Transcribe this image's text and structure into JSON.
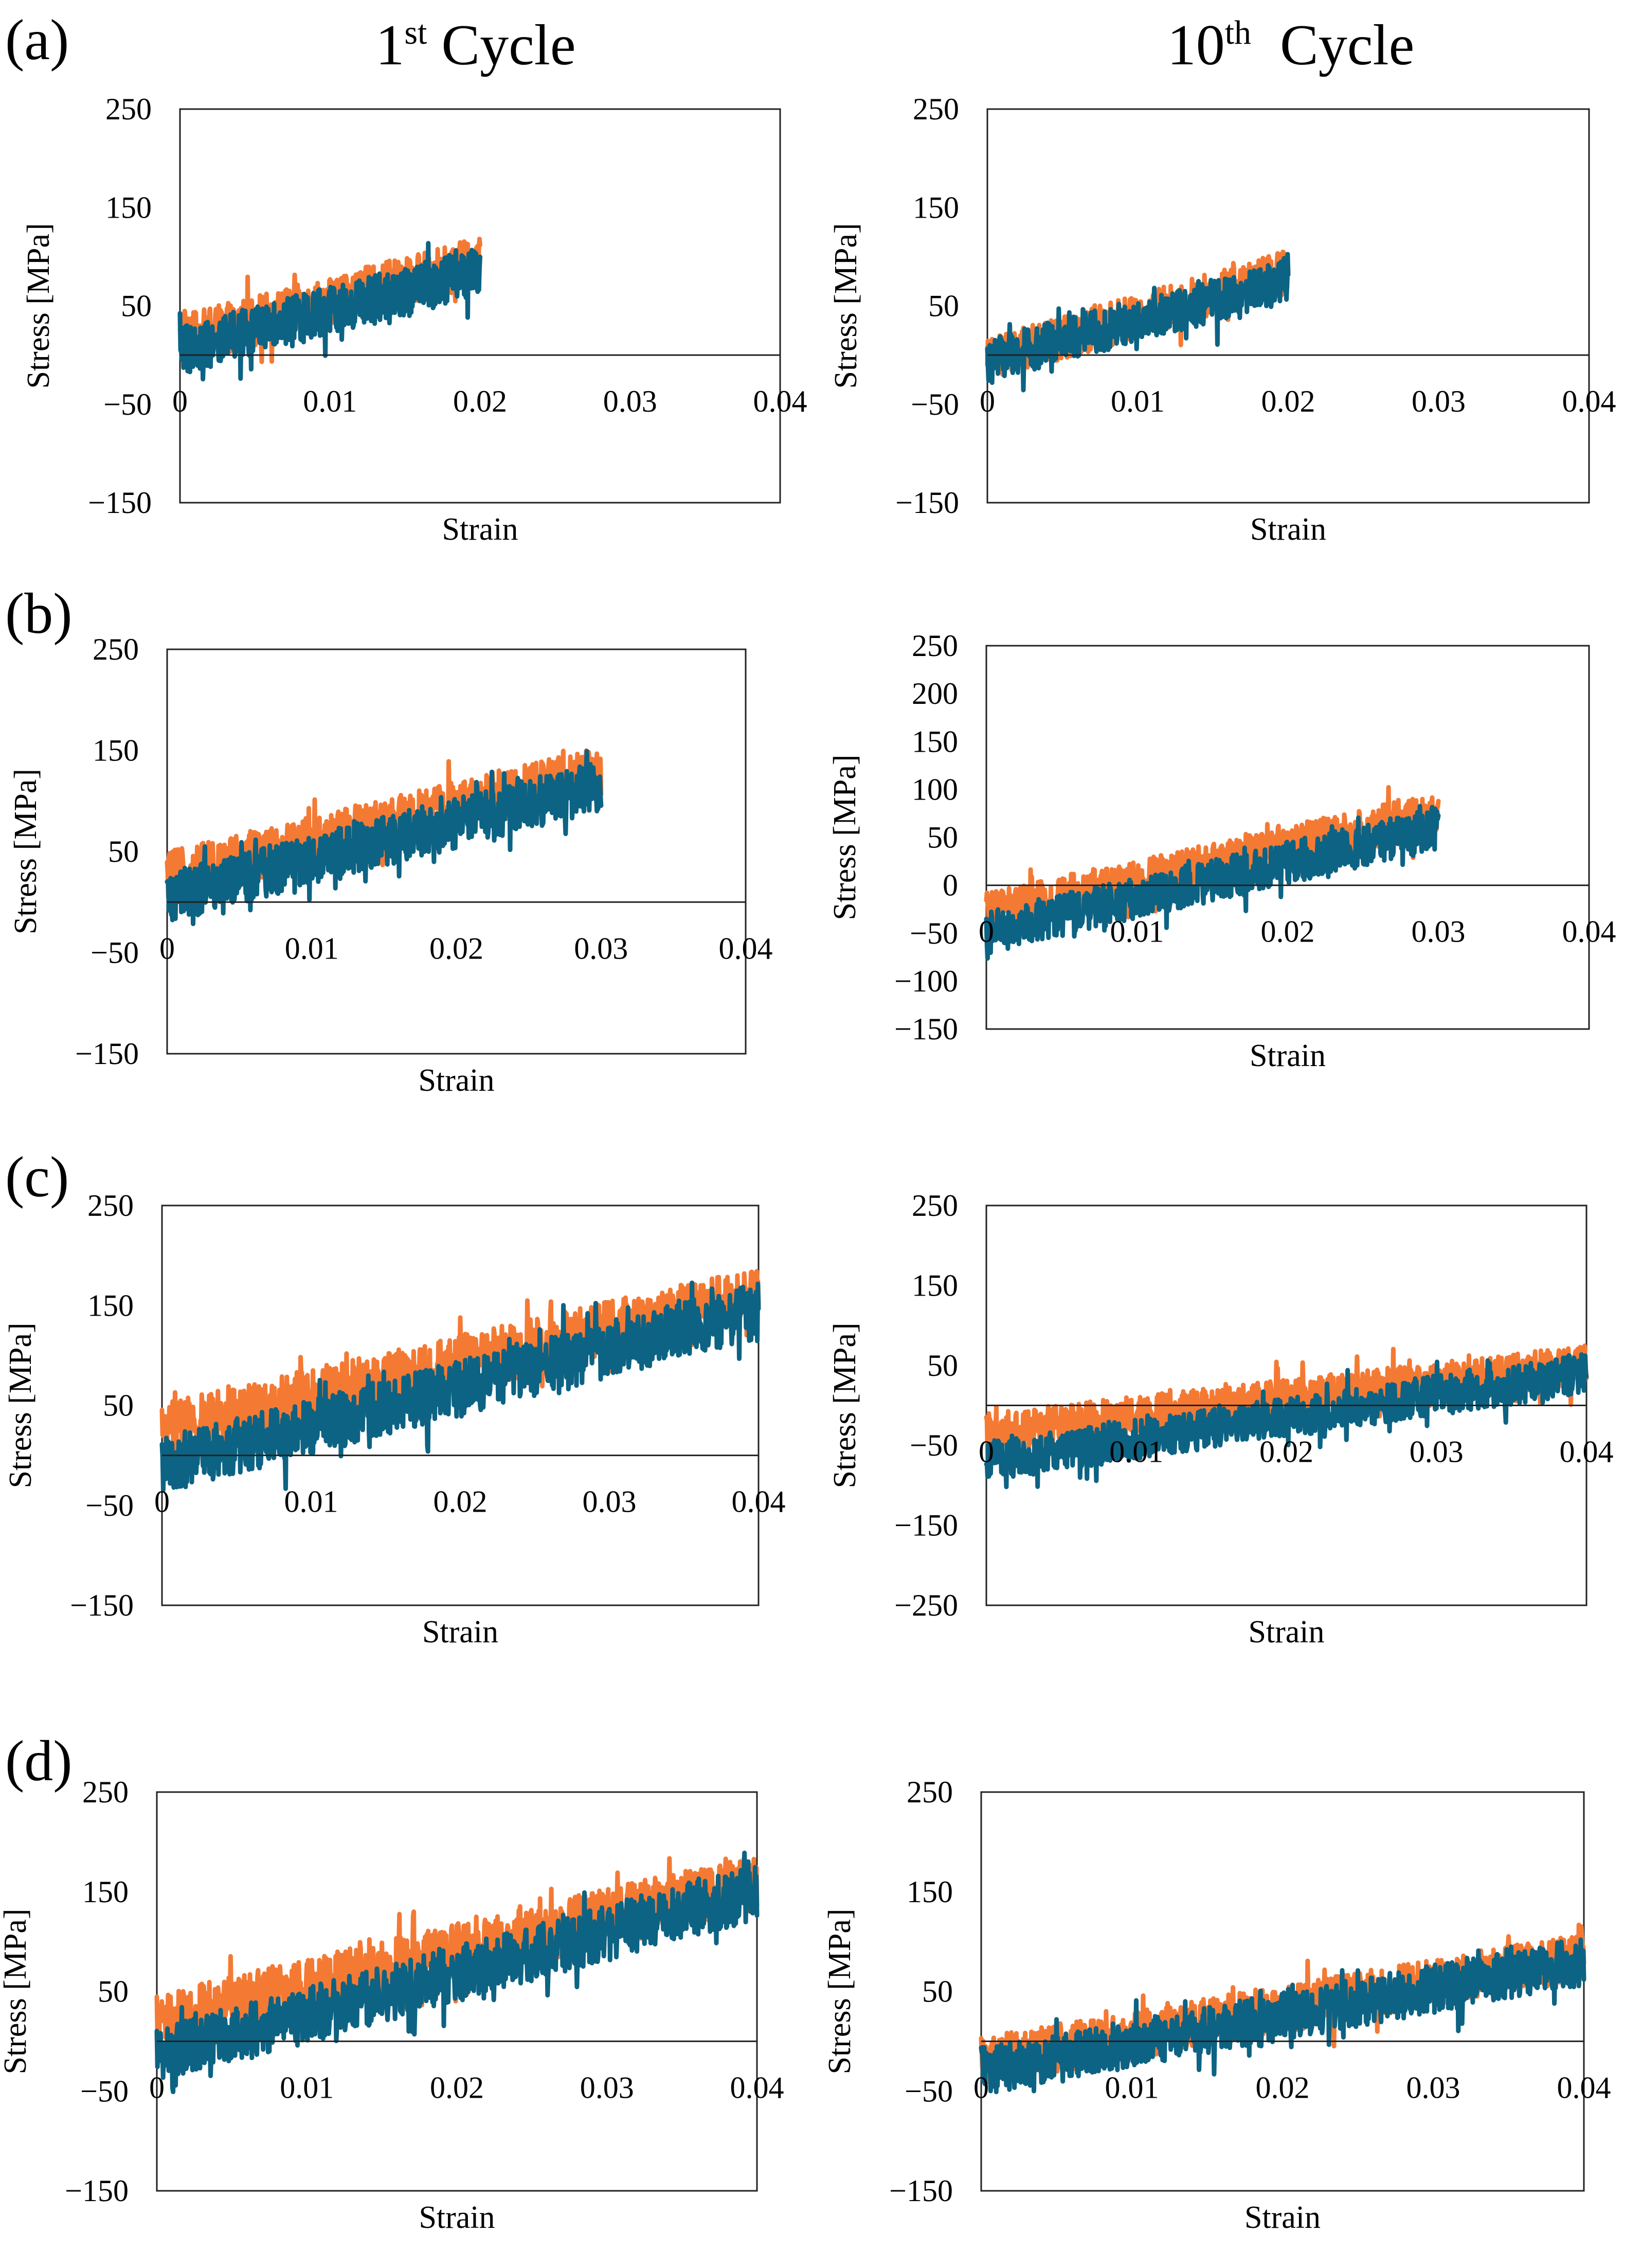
{
  "figure": {
    "column_titles": [
      {
        "main": "1",
        "sup": "st",
        "rest": " Cycle"
      },
      {
        "main": "10",
        "sup": "th",
        "rest": "  Cycle"
      }
    ],
    "row_labels": [
      "(a)",
      "(b)",
      "(c)",
      "(d)"
    ],
    "series_colors": {
      "orange": "#F47A34",
      "teal": "#0D6383"
    }
  },
  "chart_data": [
    {
      "id": "a1",
      "type": "line",
      "row": 0,
      "col": 0,
      "xlabel": "Strain",
      "ylabel": "Stress [MPa]",
      "xlim": [
        0,
        0.04
      ],
      "ylim": [
        -150,
        250
      ],
      "xticks": [
        0,
        0.01,
        0.02,
        0.03,
        0.04
      ],
      "xtick_labels": [
        "0",
        "0.01",
        "0.02",
        "0.03",
        "0.04"
      ],
      "yticks": [
        -150,
        -50,
        50,
        150,
        250
      ],
      "ytick_labels": [
        "−150",
        "−50",
        "50",
        "150",
        "250"
      ],
      "series": [
        {
          "name": "orange",
          "color": "#F47A34",
          "strain_end": 0.02,
          "trend": [
            [
              0,
              15
            ],
            [
              0.02,
              95
            ]
          ],
          "noise_amplitude": 25
        },
        {
          "name": "teal",
          "color": "#0D6383",
          "strain_end": 0.02,
          "trend": [
            [
              0,
              5
            ],
            [
              0.02,
              85
            ]
          ],
          "noise_amplitude": 25
        }
      ]
    },
    {
      "id": "a10",
      "type": "line",
      "row": 0,
      "col": 1,
      "xlabel": "Strain",
      "ylabel": "Stress [MPa]",
      "xlim": [
        0,
        0.04
      ],
      "ylim": [
        -150,
        250
      ],
      "xticks": [
        0,
        0.01,
        0.02,
        0.03,
        0.04
      ],
      "xtick_labels": [
        "0",
        "0.01",
        "0.02",
        "0.03",
        "0.04"
      ],
      "yticks": [
        -150,
        -50,
        50,
        150,
        250
      ],
      "ytick_labels": [
        "−150",
        "−50",
        "50",
        "150",
        "250"
      ],
      "series": [
        {
          "name": "orange",
          "color": "#F47A34",
          "strain_end": 0.02,
          "trend": [
            [
              0,
              -5
            ],
            [
              0.02,
              85
            ]
          ],
          "noise_amplitude": 22
        },
        {
          "name": "teal",
          "color": "#0D6383",
          "strain_end": 0.02,
          "trend": [
            [
              0,
              -5
            ],
            [
              0.02,
              75
            ]
          ],
          "noise_amplitude": 22
        }
      ]
    },
    {
      "id": "b1",
      "type": "line",
      "row": 1,
      "col": 0,
      "xlabel": "Strain",
      "ylabel": "Stress [MPa]",
      "xlim": [
        0,
        0.04
      ],
      "ylim": [
        -150,
        250
      ],
      "xticks": [
        0,
        0.01,
        0.02,
        0.03,
        0.04
      ],
      "xtick_labels": [
        "0",
        "0.01",
        "0.02",
        "0.03",
        "0.04"
      ],
      "yticks": [
        -150,
        -50,
        50,
        150,
        250
      ],
      "ytick_labels": [
        "−150",
        "−50",
        "50",
        "150",
        "250"
      ],
      "series": [
        {
          "name": "orange",
          "color": "#F47A34",
          "strain_end": 0.03,
          "trend": [
            [
              0,
              25
            ],
            [
              0.03,
              130
            ]
          ],
          "noise_amplitude": 25
        },
        {
          "name": "teal",
          "color": "#0D6383",
          "strain_end": 0.03,
          "trend": [
            [
              0,
              5
            ],
            [
              0.03,
              115
            ]
          ],
          "noise_amplitude": 25
        }
      ]
    },
    {
      "id": "b10",
      "type": "line",
      "row": 1,
      "col": 1,
      "xlabel": "Strain",
      "ylabel": "Stress [MPa]",
      "xlim": [
        0,
        0.04
      ],
      "ylim": [
        -150,
        250
      ],
      "xticks": [
        0,
        0.01,
        0.02,
        0.03,
        0.04
      ],
      "xtick_labels": [
        "0",
        "0.01",
        "0.02",
        "0.03",
        "0.04"
      ],
      "yticks": [
        -150,
        -100,
        -50,
        0,
        50,
        100,
        150,
        200,
        250
      ],
      "ytick_labels": [
        "−150",
        "−100",
        "−50",
        "0",
        "50",
        "100",
        "150",
        "200",
        "250"
      ],
      "series": [
        {
          "name": "orange",
          "color": "#F47A34",
          "strain_end": 0.03,
          "trend": [
            [
              0,
              -30
            ],
            [
              0.03,
              75
            ]
          ],
          "noise_amplitude": 22
        },
        {
          "name": "teal",
          "color": "#0D6383",
          "strain_end": 0.03,
          "trend": [
            [
              0,
              -50
            ],
            [
              0.03,
              60
            ]
          ],
          "noise_amplitude": 22
        }
      ]
    },
    {
      "id": "c1",
      "type": "line",
      "row": 2,
      "col": 0,
      "xlabel": "Strain",
      "ylabel": "Stress [MPa]",
      "xlim": [
        0,
        0.04
      ],
      "ylim": [
        -150,
        250
      ],
      "xticks": [
        0,
        0.01,
        0.02,
        0.03,
        0.04
      ],
      "xtick_labels": [
        "0",
        "0.01",
        "0.02",
        "0.03",
        "0.04"
      ],
      "yticks": [
        -150,
        -50,
        50,
        150,
        250
      ],
      "ytick_labels": [
        "−150",
        "−50",
        "50",
        "150",
        "250"
      ],
      "series": [
        {
          "name": "orange",
          "color": "#F47A34",
          "strain_end": 0.04,
          "trend": [
            [
              0,
              25
            ],
            [
              0.04,
              160
            ]
          ],
          "noise_amplitude": 28
        },
        {
          "name": "teal",
          "color": "#0D6383",
          "strain_end": 0.04,
          "trend": [
            [
              0,
              -10
            ],
            [
              0.04,
              145
            ]
          ],
          "noise_amplitude": 28
        }
      ]
    },
    {
      "id": "c10",
      "type": "line",
      "row": 2,
      "col": 1,
      "xlabel": "Strain",
      "ylabel": "Stress [MPa]",
      "xlim": [
        0,
        0.04
      ],
      "ylim": [
        -250,
        250
      ],
      "xticks": [
        0,
        0.01,
        0.02,
        0.03,
        0.04
      ],
      "xtick_labels": [
        "0",
        "0.01",
        "0.02",
        "0.03",
        "0.04"
      ],
      "yticks": [
        -250,
        -150,
        -50,
        50,
        150,
        250
      ],
      "ytick_labels": [
        "−250",
        "−150",
        "−50",
        "50",
        "150",
        "250"
      ],
      "series": [
        {
          "name": "orange",
          "color": "#F47A34",
          "strain_end": 0.04,
          "trend": [
            [
              0,
              -35
            ],
            [
              0.04,
              50
            ]
          ],
          "noise_amplitude": 25
        },
        {
          "name": "teal",
          "color": "#0D6383",
          "strain_end": 0.04,
          "trend": [
            [
              0,
              -70
            ],
            [
              0.04,
              40
            ]
          ],
          "noise_amplitude": 25
        }
      ]
    },
    {
      "id": "d1",
      "type": "line",
      "row": 3,
      "col": 0,
      "xlabel": "Strain",
      "ylabel": "Stress [MPa]",
      "xlim": [
        0,
        0.04
      ],
      "ylim": [
        -150,
        250
      ],
      "xticks": [
        0,
        0.01,
        0.02,
        0.03,
        0.04
      ],
      "xtick_labels": [
        "0",
        "0.01",
        "0.02",
        "0.03",
        "0.04"
      ],
      "yticks": [
        -150,
        -50,
        50,
        150,
        250
      ],
      "ytick_labels": [
        "−150",
        "−50",
        "50",
        "150",
        "250"
      ],
      "series": [
        {
          "name": "orange",
          "color": "#F47A34",
          "strain_end": 0.04,
          "trend": [
            [
              0,
              20
            ],
            [
              0.04,
              160
            ]
          ],
          "noise_amplitude": 28
        },
        {
          "name": "teal",
          "color": "#0D6383",
          "strain_end": 0.04,
          "trend": [
            [
              0,
              -15
            ],
            [
              0.04,
              150
            ]
          ],
          "noise_amplitude": 28
        }
      ]
    },
    {
      "id": "d10",
      "type": "line",
      "row": 3,
      "col": 1,
      "xlabel": "Strain",
      "ylabel": "Stress [MPa]",
      "xlim": [
        0,
        0.04
      ],
      "ylim": [
        -150,
        250
      ],
      "xticks": [
        0,
        0.01,
        0.02,
        0.03,
        0.04
      ],
      "xtick_labels": [
        "0",
        "0.01",
        "0.02",
        "0.03",
        "0.04"
      ],
      "yticks": [
        -150,
        -50,
        50,
        150,
        250
      ],
      "ytick_labels": [
        "−150",
        "−50",
        "50",
        "150",
        "250"
      ],
      "series": [
        {
          "name": "orange",
          "color": "#F47A34",
          "strain_end": 0.04,
          "trend": [
            [
              0,
              -20
            ],
            [
              0.04,
              85
            ]
          ],
          "noise_amplitude": 24
        },
        {
          "name": "teal",
          "color": "#0D6383",
          "strain_end": 0.04,
          "trend": [
            [
              0,
              -30
            ],
            [
              0.04,
              80
            ]
          ],
          "noise_amplitude": 24
        }
      ]
    }
  ]
}
